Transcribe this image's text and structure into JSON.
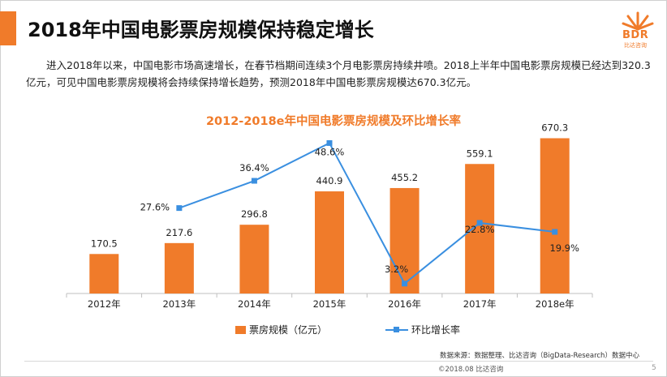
{
  "title": "2018年中国电影票房规模保持稳定增长",
  "logo": {
    "text": "BDR",
    "subtext": "比达咨询"
  },
  "intro": "进入2018年以来，中国电影市场高速增长，在春节档期间连续3个月电影票房持续井喷。2018上半年中国电影票房规模已经达到320.3亿元，可见中国电影票房规模将会持续保持增长趋势，预测2018年中国电影票房规模达670.3亿元。",
  "chart_data": {
    "type": "bar+line",
    "title": "2012-2018e年中国电影票房规模及环比增长率",
    "categories": [
      "2012年",
      "2013年",
      "2014年",
      "2015年",
      "2016年",
      "2017年",
      "2018e年"
    ],
    "series": [
      {
        "name": "票房规模（亿元）",
        "type": "bar",
        "values": [
          170.5,
          217.6,
          296.8,
          440.9,
          455.2,
          559.1,
          670.3
        ],
        "labels": [
          "170.5",
          "217.6",
          "296.8",
          "440.9",
          "455.2",
          "559.1",
          "670.3"
        ]
      },
      {
        "name": "环比增长率",
        "type": "line",
        "values": [
          null,
          27.6,
          36.4,
          48.6,
          3.2,
          22.8,
          19.9
        ],
        "labels": [
          "",
          "27.6%",
          "36.4%",
          "48.6%",
          "3.2%",
          "22.8%",
          "19.9%"
        ]
      }
    ],
    "bar_ylim": [
      0,
      700
    ],
    "line_ylim": [
      0,
      55
    ],
    "colors": {
      "bar": "#f07b2a",
      "line": "#3a8fe0"
    },
    "legend": {
      "bar": "票房规模（亿元）",
      "line": "环比增长率"
    }
  },
  "source": "数据来源：数据整理、比达咨询（BigData-Research）数据中心",
  "copyright": "©2018.08  比达咨询",
  "page_number": "5"
}
